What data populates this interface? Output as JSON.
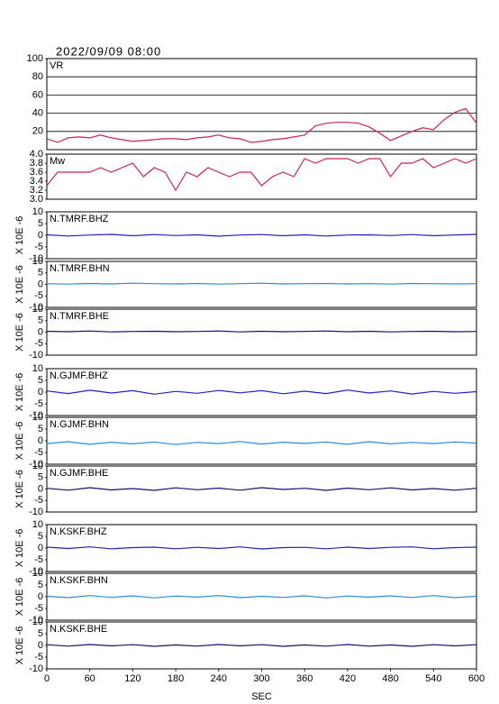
{
  "chart_data": [
    {
      "type": "line",
      "title": "2022/09/09 08:00",
      "label": "VR",
      "color": "#cc2255",
      "grid": true,
      "x": [
        0,
        15,
        30,
        45,
        60,
        75,
        90,
        105,
        120,
        135,
        150,
        165,
        180,
        195,
        210,
        225,
        240,
        255,
        270,
        285,
        300,
        315,
        330,
        345,
        360,
        375,
        390,
        405,
        420,
        435,
        450,
        465,
        480,
        495,
        510,
        525,
        540,
        555,
        570,
        585,
        600
      ],
      "values": [
        12,
        8,
        13,
        14,
        13,
        16,
        13,
        11,
        9,
        10,
        11,
        12,
        12,
        11,
        13,
        14,
        16,
        13,
        12,
        8,
        9,
        11,
        12,
        14,
        16,
        26,
        29,
        30,
        30,
        29,
        25,
        18,
        10,
        15,
        20,
        24,
        22,
        33,
        41,
        45,
        29
      ],
      "xlim": [
        0,
        600
      ],
      "ylim": [
        0,
        100
      ],
      "yticks": [
        20,
        40,
        60,
        80,
        100
      ]
    },
    {
      "type": "line",
      "label": "Mw",
      "color": "#cc2255",
      "grid": false,
      "x": [
        0,
        15,
        30,
        45,
        60,
        75,
        90,
        105,
        120,
        135,
        150,
        165,
        180,
        195,
        210,
        225,
        240,
        255,
        270,
        285,
        300,
        315,
        330,
        345,
        360,
        375,
        390,
        405,
        420,
        435,
        450,
        465,
        480,
        495,
        510,
        525,
        540,
        555,
        570,
        585,
        600
      ],
      "values": [
        3.3,
        3.6,
        3.6,
        3.6,
        3.6,
        3.7,
        3.6,
        3.7,
        3.8,
        3.5,
        3.7,
        3.6,
        3.2,
        3.6,
        3.5,
        3.7,
        3.6,
        3.5,
        3.6,
        3.6,
        3.3,
        3.5,
        3.6,
        3.5,
        3.9,
        3.8,
        3.9,
        3.9,
        3.9,
        3.8,
        3.9,
        3.9,
        3.5,
        3.8,
        3.8,
        3.9,
        3.7,
        3.8,
        3.9,
        3.8,
        3.9
      ],
      "xlim": [
        0,
        600
      ],
      "ylim": [
        3,
        4
      ],
      "yticks": [
        {
          "value": 3,
          "label": "3.0"
        },
        3.2,
        3.4,
        3.6,
        3.8,
        {
          "value": 4,
          "label": "4.0"
        }
      ]
    },
    {
      "type": "line",
      "label": "N.TMRF.BHZ",
      "ylabel": "X 10E -6",
      "color": "#2020c8",
      "x": [
        0,
        30,
        60,
        90,
        120,
        150,
        180,
        210,
        240,
        270,
        300,
        330,
        360,
        390,
        420,
        450,
        480,
        510,
        540,
        570,
        600
      ],
      "values": [
        0.2,
        -0.3,
        0.1,
        0.4,
        -0.2,
        0.3,
        -0.1,
        0.2,
        -0.4,
        0.1,
        0.3,
        -0.2,
        0.2,
        -0.3,
        0.1,
        0.2,
        -0.1,
        0.3,
        -0.2,
        0.1,
        0.4
      ],
      "xlim": [
        0,
        600
      ],
      "ylim": [
        -10,
        10
      ],
      "yticks": [
        -10,
        -5,
        0,
        5,
        10
      ]
    },
    {
      "type": "line",
      "label": "N.TMRF.BHN",
      "ylabel": "X 10E -6",
      "color": "#2a8ce0",
      "x": [
        0,
        30,
        60,
        90,
        120,
        150,
        180,
        210,
        240,
        270,
        300,
        330,
        360,
        390,
        420,
        450,
        480,
        510,
        540,
        570,
        600
      ],
      "values": [
        0.3,
        0.1,
        0.4,
        0.2,
        0.5,
        0.3,
        0.2,
        0.4,
        0.1,
        0.3,
        0.5,
        0.2,
        0.3,
        0.4,
        0.2,
        0.3,
        0.1,
        0.4,
        0.3,
        0.2,
        0.3
      ],
      "xlim": [
        0,
        600
      ],
      "ylim": [
        -10,
        10
      ],
      "yticks": [
        -10,
        -5,
        0,
        5,
        10
      ]
    },
    {
      "type": "line",
      "label": "N.TMRF.BHE",
      "ylabel": "X 10E -6",
      "color": "#121270",
      "x": [
        0,
        30,
        60,
        90,
        120,
        150,
        180,
        210,
        240,
        270,
        300,
        330,
        360,
        390,
        420,
        450,
        480,
        510,
        540,
        570,
        600
      ],
      "values": [
        0.4,
        0.2,
        0.5,
        0.1,
        0.3,
        0.4,
        0.2,
        0.3,
        0.5,
        0.1,
        0.4,
        0.2,
        0.3,
        0.5,
        0.2,
        0.4,
        0.1,
        0.3,
        0.4,
        0.2,
        0.3
      ],
      "xlim": [
        0,
        600
      ],
      "ylim": [
        -10,
        10
      ],
      "yticks": [
        -10,
        -5,
        0,
        5,
        10
      ]
    },
    {
      "type": "line",
      "label": "N.GJMF.BHZ",
      "ylabel": "X 10E -6",
      "color": "#2020c8",
      "x": [
        0,
        30,
        60,
        90,
        120,
        150,
        180,
        210,
        240,
        270,
        300,
        330,
        360,
        390,
        420,
        450,
        480,
        510,
        540,
        570,
        600
      ],
      "values": [
        0.5,
        -0.6,
        0.8,
        -0.4,
        0.6,
        -0.9,
        0.3,
        -0.5,
        0.7,
        -0.3,
        0.6,
        -0.7,
        0.4,
        -0.6,
        0.9,
        -0.4,
        0.5,
        -0.8,
        0.3,
        -0.5,
        0.2
      ],
      "xlim": [
        0,
        600
      ],
      "ylim": [
        -10,
        10
      ],
      "yticks": [
        -10,
        -5,
        0,
        5,
        10
      ]
    },
    {
      "type": "line",
      "label": "N.GJMF.BHN",
      "ylabel": "X 10E -6",
      "color": "#2a8ce0",
      "x": [
        0,
        30,
        60,
        90,
        120,
        150,
        180,
        210,
        240,
        270,
        300,
        330,
        360,
        390,
        420,
        450,
        480,
        510,
        540,
        570,
        600
      ],
      "values": [
        -1.2,
        -0.4,
        -1.5,
        -0.6,
        -1.3,
        -0.5,
        -1.6,
        -0.7,
        -1.2,
        -0.3,
        -1.4,
        -0.6,
        -1.1,
        -0.5,
        -1.5,
        -0.4,
        -1.3,
        -0.7,
        -1.2,
        -0.5,
        -1.0
      ],
      "xlim": [
        0,
        600
      ],
      "ylim": [
        -10,
        10
      ],
      "yticks": [
        -10,
        -5,
        0,
        5,
        10
      ]
    },
    {
      "type": "line",
      "label": "N.GJMF.BHE",
      "ylabel": "X 10E -6",
      "color": "#121270",
      "x": [
        0,
        30,
        60,
        90,
        120,
        150,
        180,
        210,
        240,
        270,
        300,
        330,
        360,
        390,
        420,
        450,
        480,
        510,
        540,
        570,
        600
      ],
      "values": [
        0.3,
        -0.5,
        0.6,
        -0.4,
        0.2,
        -0.6,
        0.5,
        -0.3,
        0.4,
        -0.5,
        0.6,
        -0.2,
        0.3,
        -0.6,
        0.4,
        -0.3,
        0.5,
        -0.4,
        0.2,
        -0.5,
        0.3
      ],
      "xlim": [
        0,
        600
      ],
      "ylim": [
        -10,
        10
      ],
      "yticks": [
        -10,
        -5,
        0,
        5,
        10
      ]
    },
    {
      "type": "line",
      "label": "N.KSKF.BHZ",
      "ylabel": "X 10E -6",
      "color": "#2020c8",
      "x": [
        0,
        30,
        60,
        90,
        120,
        150,
        180,
        210,
        240,
        270,
        300,
        330,
        360,
        390,
        420,
        450,
        480,
        510,
        540,
        570,
        600
      ],
      "values": [
        0.4,
        -0.2,
        0.5,
        -0.3,
        0.2,
        0.4,
        -0.3,
        0.3,
        -0.2,
        0.5,
        -0.4,
        0.2,
        0.3,
        -0.3,
        0.4,
        -0.2,
        0.3,
        0.5,
        -0.3,
        0.2,
        0.4
      ],
      "xlim": [
        0,
        600
      ],
      "ylim": [
        -10,
        10
      ],
      "yticks": [
        -10,
        -5,
        0,
        5,
        10
      ]
    },
    {
      "type": "line",
      "label": "N.KSKF.BHN",
      "ylabel": "X 10E -6",
      "color": "#2a8ce0",
      "x": [
        0,
        30,
        60,
        90,
        120,
        150,
        180,
        210,
        240,
        270,
        300,
        330,
        360,
        390,
        420,
        450,
        480,
        510,
        540,
        570,
        600
      ],
      "values": [
        0.2,
        -0.4,
        0.5,
        -0.3,
        0.4,
        -0.5,
        0.3,
        -0.2,
        0.5,
        -0.4,
        0.2,
        -0.3,
        0.4,
        -0.5,
        0.3,
        -0.2,
        0.4,
        -0.3,
        0.5,
        -0.4,
        0.2
      ],
      "xlim": [
        0,
        600
      ],
      "ylim": [
        -10,
        10
      ],
      "yticks": [
        -10,
        -5,
        0,
        5,
        10
      ]
    },
    {
      "type": "line",
      "label": "N.KSKF.BHE",
      "ylabel": "X 10E -6",
      "color": "#121270",
      "xlabel": "SEC",
      "x": [
        0,
        30,
        60,
        90,
        120,
        150,
        180,
        210,
        240,
        270,
        300,
        330,
        360,
        390,
        420,
        450,
        480,
        510,
        540,
        570,
        600
      ],
      "values": [
        0.3,
        -0.3,
        0.4,
        -0.2,
        0.3,
        -0.4,
        0.2,
        -0.3,
        0.4,
        -0.2,
        0.3,
        -0.4,
        0.2,
        -0.3,
        0.4,
        -0.3,
        0.2,
        -0.4,
        0.3,
        -0.2,
        0.3
      ],
      "xlim": [
        0,
        600
      ],
      "ylim": [
        -10,
        10
      ],
      "yticks": [
        -10,
        -5,
        0,
        5,
        10
      ],
      "xticks": [
        0,
        60,
        120,
        180,
        240,
        300,
        360,
        420,
        480,
        540,
        600
      ]
    }
  ]
}
